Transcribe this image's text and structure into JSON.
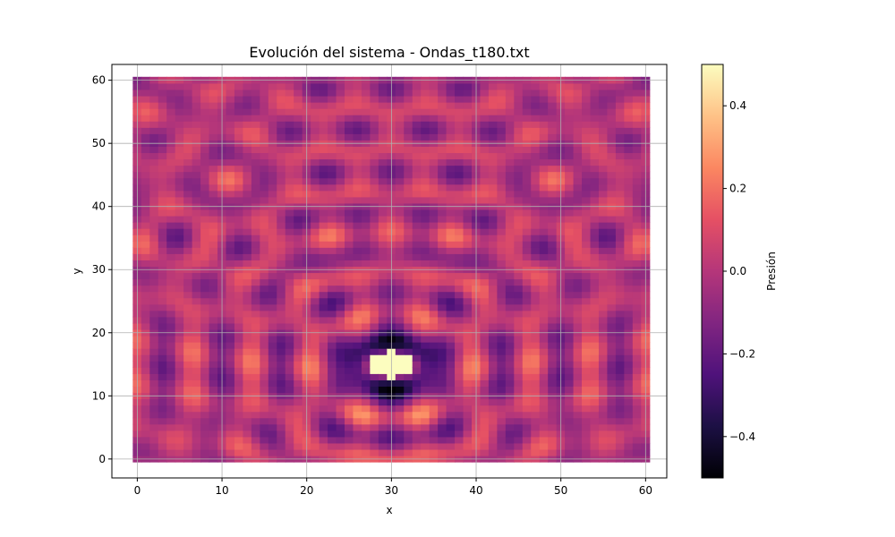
{
  "chart_data": {
    "type": "heatmap",
    "title": "Evolución del sistema - Ondas_t180.txt",
    "xlabel": "x",
    "ylabel": "y",
    "xlim": [
      -3,
      62.5
    ],
    "ylim": [
      -3,
      62.5
    ],
    "data_extent": {
      "x": [
        0,
        60
      ],
      "y": [
        0,
        60
      ]
    },
    "grid": true,
    "x_ticks": [
      0,
      10,
      20,
      30,
      40,
      50,
      60
    ],
    "y_ticks": [
      0,
      10,
      20,
      30,
      40,
      50,
      60
    ],
    "source_point": {
      "x": 30,
      "y": 15
    },
    "colormap": "magma",
    "colorbar": {
      "label": "Presión",
      "range": [
        -0.5,
        0.5
      ],
      "ticks": [
        -0.4,
        -0.2,
        0.0,
        0.2,
        0.4
      ],
      "tick_labels": [
        "−0.4",
        "−0.2",
        "0.0",
        "0.2",
        "0.4"
      ]
    }
  }
}
